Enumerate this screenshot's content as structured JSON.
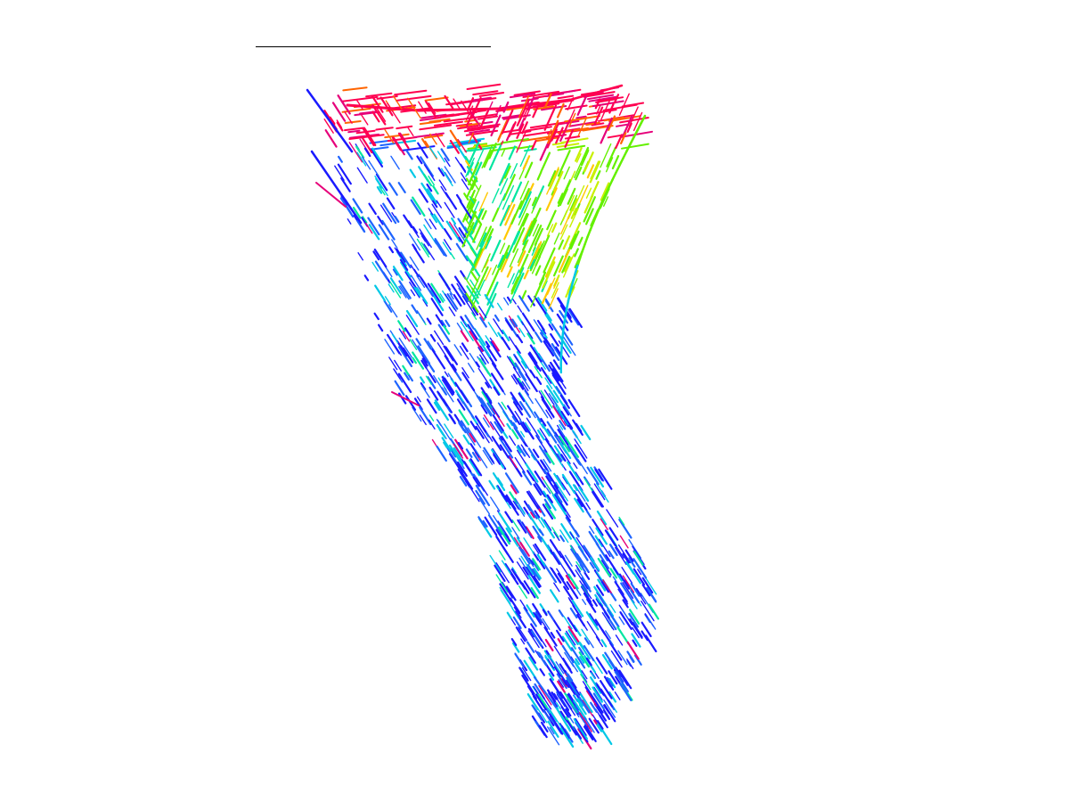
{
  "figure": {
    "background": "#ffffff",
    "title_line_color": "#000000",
    "colormap": [
      "#1a1aff",
      "#1e64ff",
      "#00c8e6",
      "#00e6a0",
      "#64f000",
      "#c8f000",
      "#ffc800",
      "#ff6400",
      "#ff0050",
      "#e6007a"
    ]
  }
}
